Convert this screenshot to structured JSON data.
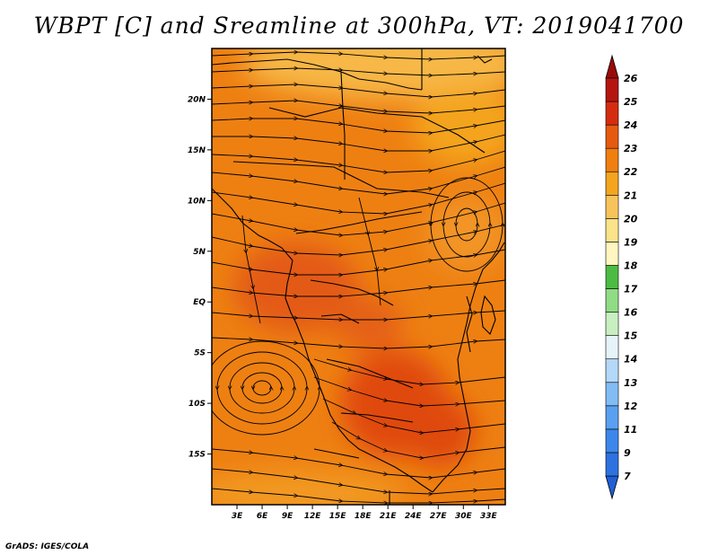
{
  "title": "WBPT [C] and Sreamline at 300hPa, VT: 2019041700",
  "footer": "GrADS: IGES/COLA",
  "chart_data": {
    "type": "heatmap",
    "title": "WBPT [C] and Sreamline at 300hPa, VT: 2019041700",
    "variable": "WBPT",
    "unit": "C",
    "level": "300hPa",
    "valid_time": "2019041700",
    "overlay": "streamlines",
    "lon_range": [
      0,
      35
    ],
    "lat_range": [
      -20,
      25
    ],
    "x_ticks": [
      "3E",
      "6E",
      "9E",
      "12E",
      "15E",
      "18E",
      "21E",
      "24E",
      "27E",
      "30E",
      "33E"
    ],
    "x_tick_values": [
      3,
      6,
      9,
      12,
      15,
      18,
      21,
      24,
      27,
      30,
      33
    ],
    "y_ticks": [
      "20N",
      "15N",
      "10N",
      "5N",
      "EQ",
      "5S",
      "10S",
      "15S"
    ],
    "y_tick_values": [
      20,
      15,
      10,
      5,
      0,
      -5,
      -10,
      -15
    ],
    "colorbar": {
      "labels": [
        "7",
        "9",
        "11",
        "12",
        "13",
        "14",
        "15",
        "16",
        "17",
        "18",
        "19",
        "20",
        "21",
        "22",
        "23",
        "24",
        "25",
        "26"
      ],
      "colors": [
        "#1f5fd6",
        "#2d72e0",
        "#3c87ea",
        "#5aa0f0",
        "#82bcf5",
        "#b4d8f8",
        "#e6f4fa",
        "#c8efc0",
        "#8fdc84",
        "#4cbb43",
        "#fff6c0",
        "#fbe38a",
        "#f7c45c",
        "#f4a41f",
        "#ef7f10",
        "#e65a10",
        "#d52c10",
        "#b5150f",
        "#9a0a0a"
      ]
    },
    "dominant_range": [
      20,
      25
    ]
  }
}
